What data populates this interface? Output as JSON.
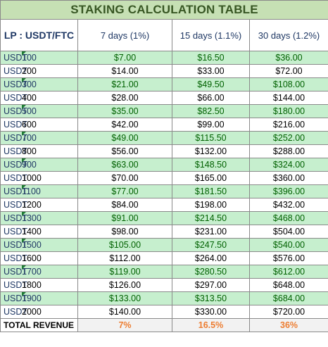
{
  "title": "STAKING CALCULATION TABLE",
  "headers": {
    "lp": "LP : USDT/FTC",
    "d7": "7 days (1%)",
    "d15": "15 days (1.1%)",
    "d30": "30 days (1.2%)"
  },
  "currency": "USDT",
  "colors": {
    "title_bg": "#c6e0b4",
    "title_text": "#375623",
    "band_bg": "#c6efce",
    "band_text": "#006100",
    "revenue_text": "#ed7d31",
    "header_text": "#1f3864"
  },
  "rows": [
    {
      "amount": "100",
      "d7": "$7.00",
      "d15": "$16.50",
      "d30": "$36.00"
    },
    {
      "amount": "200",
      "d7": "$14.00",
      "d15": "$33.00",
      "d30": "$72.00"
    },
    {
      "amount": "300",
      "d7": "$21.00",
      "d15": "$49.50",
      "d30": "$108.00"
    },
    {
      "amount": "400",
      "d7": "$28.00",
      "d15": "$66.00",
      "d30": "$144.00"
    },
    {
      "amount": "500",
      "d7": "$35.00",
      "d15": "$82.50",
      "d30": "$180.00"
    },
    {
      "amount": "600",
      "d7": "$42.00",
      "d15": "$99.00",
      "d30": "$216.00"
    },
    {
      "amount": "700",
      "d7": "$49.00",
      "d15": "$115.50",
      "d30": "$252.00"
    },
    {
      "amount": "800",
      "d7": "$56.00",
      "d15": "$132.00",
      "d30": "$288.00"
    },
    {
      "amount": "900",
      "d7": "$63.00",
      "d15": "$148.50",
      "d30": "$324.00"
    },
    {
      "amount": "1000",
      "d7": "$70.00",
      "d15": "$165.00",
      "d30": "$360.00"
    },
    {
      "amount": "1100",
      "d7": "$77.00",
      "d15": "$181.50",
      "d30": "$396.00"
    },
    {
      "amount": "1200",
      "d7": "$84.00",
      "d15": "$198.00",
      "d30": "$432.00"
    },
    {
      "amount": "1300",
      "d7": "$91.00",
      "d15": "$214.50",
      "d30": "$468.00"
    },
    {
      "amount": "1400",
      "d7": "$98.00",
      "d15": "$231.00",
      "d30": "$504.00"
    },
    {
      "amount": "1500",
      "d7": "$105.00",
      "d15": "$247.50",
      "d30": "$540.00"
    },
    {
      "amount": "1600",
      "d7": "$112.00",
      "d15": "$264.00",
      "d30": "$576.00"
    },
    {
      "amount": "1700",
      "d7": "$119.00",
      "d15": "$280.50",
      "d30": "$612.00"
    },
    {
      "amount": "1800",
      "d7": "$126.00",
      "d15": "$297.00",
      "d30": "$648.00"
    },
    {
      "amount": "1900",
      "d7": "$133.00",
      "d15": "$313.50",
      "d30": "$684.00"
    },
    {
      "amount": "2000",
      "d7": "$140.00",
      "d15": "$330.00",
      "d30": "$720.00"
    }
  ],
  "total": {
    "label": "TOTAL REVENUE",
    "d7": "7%",
    "d15": "16.5%",
    "d30": "36%"
  }
}
